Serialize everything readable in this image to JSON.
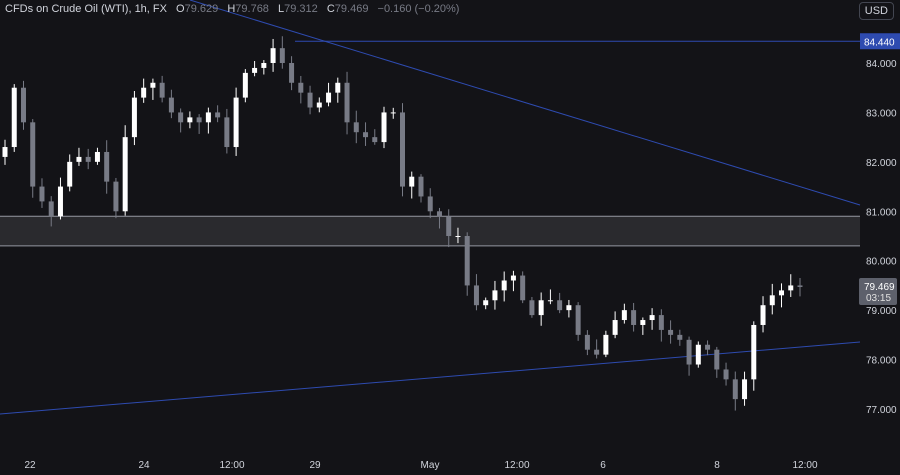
{
  "header": {
    "symbol": "CFDs on Crude Oil (WTI), 1h, FX",
    "o_label": "O",
    "o": "79.629",
    "h_label": "H",
    "h": "79.768",
    "l_label": "L",
    "l": "79.312",
    "c_label": "C",
    "c": "79.469",
    "change": "−0.160 (−0.20%)",
    "currency": "USD"
  },
  "colors": {
    "background": "#131317",
    "up": "#ffffff",
    "down": "#787b86",
    "trendline": "#2e4bb0",
    "zone": "#2a2a2e",
    "zone_border": "#9598a1"
  },
  "chart_data": {
    "type": "candlestick",
    "ylim": [
      76.8,
      84.9
    ],
    "y_ticks": [
      "84.000",
      "83.000",
      "82.000",
      "81.000",
      "80.000",
      "79.000",
      "78.000",
      "77.000"
    ],
    "x_ticks": [
      "22",
      "24",
      "12:00",
      "29",
      "May",
      "12:00",
      "6",
      "8",
      "12:00"
    ],
    "closes": [
      82.3,
      83.5,
      82.8,
      81.5,
      81.2,
      80.9,
      81.5,
      82.0,
      82.1,
      82.0,
      82.2,
      81.6,
      81.0,
      82.5,
      83.3,
      83.5,
      83.6,
      83.3,
      83.0,
      82.8,
      82.9,
      82.8,
      83.0,
      82.9,
      82.3,
      83.3,
      83.8,
      83.9,
      84.0,
      84.3,
      84.0,
      83.6,
      83.4,
      83.1,
      83.2,
      83.4,
      83.6,
      82.8,
      82.6,
      82.5,
      82.4,
      83.0,
      83.0,
      81.5,
      81.7,
      81.3,
      81.0,
      80.9,
      80.5,
      80.5,
      79.5,
      79.1,
      79.2,
      79.4,
      79.6,
      79.7,
      79.2,
      78.9,
      79.2,
      79.2,
      79.0,
      79.1,
      78.5,
      78.2,
      78.1,
      78.5,
      78.8,
      79.0,
      78.7,
      78.8,
      78.9,
      78.6,
      78.5,
      78.4,
      77.9,
      78.3,
      78.2,
      77.8,
      77.6,
      77.2,
      77.6,
      78.7,
      79.1,
      79.3,
      79.4,
      79.5,
      79.469
    ],
    "horizontal_line": {
      "price": 84.44,
      "label": "84.440"
    },
    "zone": {
      "top": 80.9,
      "bottom": 80.3
    },
    "last_price": {
      "price": 79.469,
      "label": "79.469",
      "countdown": "03:15"
    }
  }
}
